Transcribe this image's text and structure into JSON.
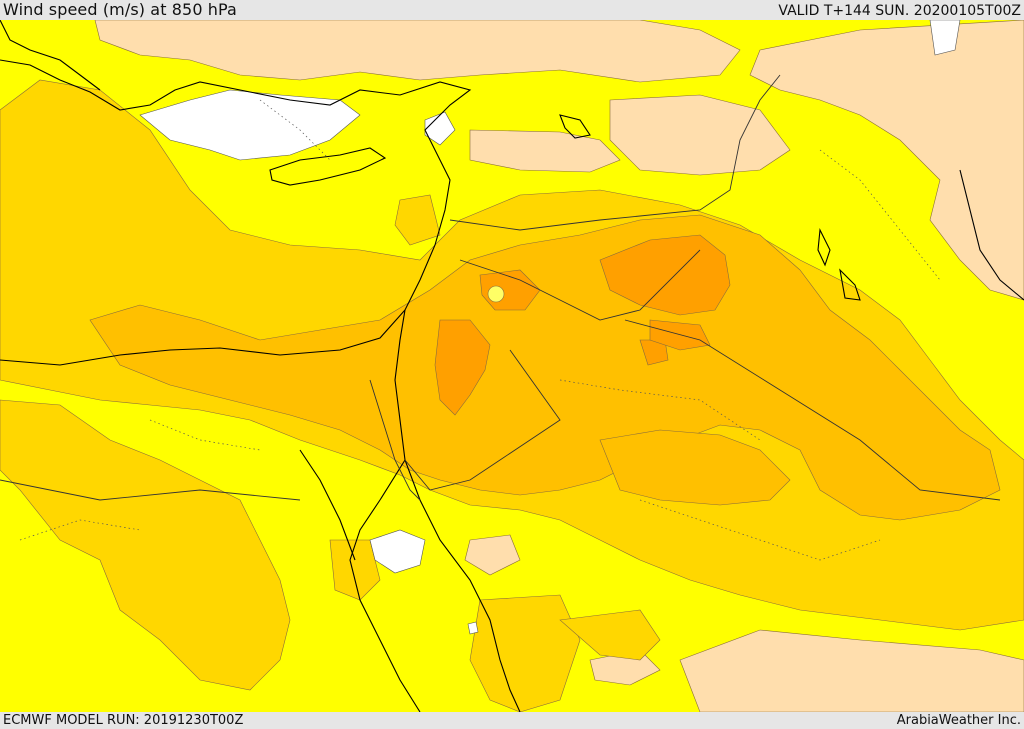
{
  "header": {
    "title": "Wind speed (m/s) at 850 hPa",
    "valid": "VALID T+144 SUN. 20200105T00Z"
  },
  "footer": {
    "model_run": "ECMWF MODEL RUN: 20191230T00Z",
    "credit": "ArabiaWeather Inc."
  },
  "colors": {
    "calm": "#ffffff",
    "light": "#ffdead",
    "moderate": "#ffff00",
    "fresh": "#ffd700",
    "strong": "#ffc000",
    "very_strong": "#ffa000",
    "coastline": "#000000",
    "borders": "#333333"
  }
}
